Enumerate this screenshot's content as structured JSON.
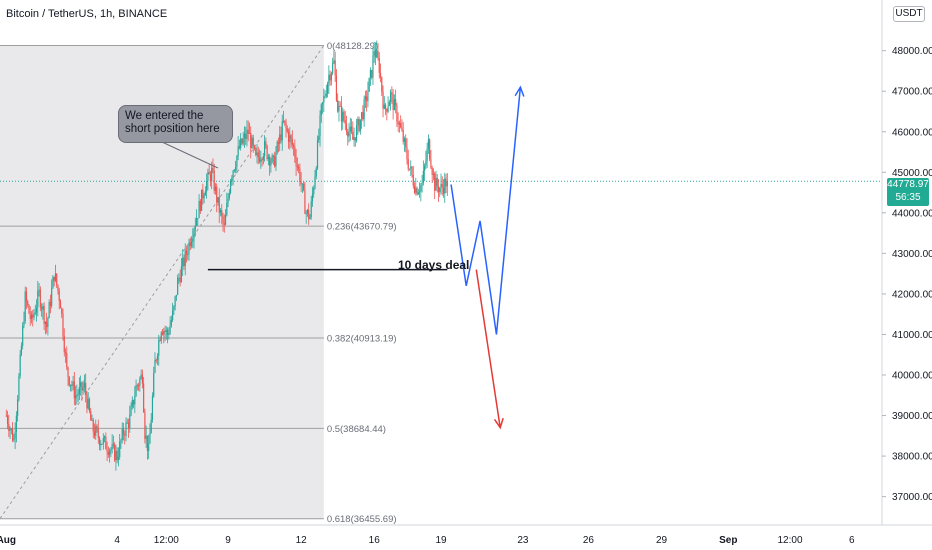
{
  "header": {
    "symbol_title": "Bitcoin / TetherUS, 1h, BINANCE",
    "currency": "USDT"
  },
  "last_price": {
    "value": 44778.97,
    "label": "44778.97",
    "countdown": "56:35",
    "color": "#22ab94"
  },
  "annotations": {
    "callout_text": "We entered the short position here",
    "deal_label": "10 days deal"
  },
  "colors": {
    "up_candle": "#26a69a",
    "down_candle": "#ef5350",
    "shade": "#e9e9ec",
    "fib_line": "#9e9e9e",
    "projection_blue": "#2962ff",
    "projection_red": "#e53935"
  },
  "chart_data": {
    "type": "candlestick",
    "title": "Bitcoin / TetherUS, 1h, BINANCE",
    "y_axis": {
      "ticks": [
        "48000.00",
        "47000.00",
        "46000.00",
        "45000.00",
        "44000.00",
        "43000.00",
        "42000.00",
        "41000.00",
        "40000.00",
        "39000.00",
        "38000.00",
        "37000.00"
      ],
      "tick_values": [
        48000,
        47000,
        46000,
        45000,
        44000,
        43000,
        42000,
        41000,
        40000,
        39000,
        38000,
        37000
      ],
      "range": [
        36300,
        49250
      ]
    },
    "x_axis": {
      "ticks": [
        "Aug",
        "4",
        "12:00",
        "9",
        "12",
        "16",
        "19",
        "23",
        "26",
        "29",
        "Sep",
        "12:00",
        "6"
      ],
      "tick_bars": [
        0,
        88,
        127,
        176,
        234,
        292,
        345,
        410,
        462,
        520,
        573,
        622,
        671
      ],
      "bar_range": [
        -5,
        695
      ]
    },
    "fibonacci": [
      {
        "level": "0",
        "price": 48128.29,
        "label": "0(48128.29)"
      },
      {
        "level": "0.236",
        "price": 43670.79,
        "label": "0.236(43670.79)"
      },
      {
        "level": "0.382",
        "price": 40913.19,
        "label": "0.382(40913.19)"
      },
      {
        "level": "0.5",
        "price": 38684.44,
        "label": "0.5(38684.44)"
      },
      {
        "level": "0.618",
        "price": 36455.69,
        "label": "0.618(36455.69)"
      }
    ],
    "price_anchors": [
      [
        0,
        39000
      ],
      [
        6,
        38400
      ],
      [
        10,
        39900
      ],
      [
        15,
        41900
      ],
      [
        20,
        41300
      ],
      [
        26,
        42000
      ],
      [
        32,
        41200
      ],
      [
        38,
        42500
      ],
      [
        43,
        41800
      ],
      [
        48,
        40100
      ],
      [
        55,
        39500
      ],
      [
        62,
        39700
      ],
      [
        68,
        38700
      ],
      [
        75,
        38400
      ],
      [
        82,
        38200
      ],
      [
        88,
        38000
      ],
      [
        93,
        38600
      ],
      [
        98,
        38900
      ],
      [
        103,
        39700
      ],
      [
        108,
        40000
      ],
      [
        110,
        38600
      ],
      [
        113,
        38100
      ],
      [
        118,
        40300
      ],
      [
        123,
        41200
      ],
      [
        128,
        41000
      ],
      [
        133,
        41600
      ],
      [
        136,
        42300
      ],
      [
        142,
        42900
      ],
      [
        150,
        43800
      ],
      [
        158,
        44700
      ],
      [
        163,
        45000
      ],
      [
        168,
        44200
      ],
      [
        173,
        43600
      ],
      [
        178,
        44900
      ],
      [
        185,
        45600
      ],
      [
        192,
        46000
      ],
      [
        198,
        45300
      ],
      [
        205,
        45600
      ],
      [
        212,
        45200
      ],
      [
        220,
        46200
      ],
      [
        228,
        45600
      ],
      [
        233,
        44900
      ],
      [
        238,
        44000
      ],
      [
        241,
        43900
      ],
      [
        245,
        45000
      ],
      [
        250,
        46500
      ],
      [
        256,
        47400
      ],
      [
        260,
        47700
      ],
      [
        263,
        46600
      ],
      [
        268,
        46300
      ],
      [
        275,
        45800
      ],
      [
        280,
        46200
      ],
      [
        285,
        46700
      ],
      [
        290,
        47500
      ],
      [
        292,
        48050
      ],
      [
        296,
        47600
      ],
      [
        300,
        46500
      ],
      [
        305,
        46900
      ],
      [
        310,
        46400
      ],
      [
        315,
        45800
      ],
      [
        320,
        45100
      ],
      [
        325,
        44600
      ],
      [
        330,
        44700
      ],
      [
        335,
        45700
      ],
      [
        340,
        44700
      ],
      [
        345,
        44600
      ],
      [
        350,
        44800
      ]
    ],
    "projection_blue": [
      [
        353,
        44700
      ],
      [
        365,
        42200
      ],
      [
        376,
        43800
      ],
      [
        389,
        41000
      ],
      [
        408,
        47100
      ]
    ],
    "projection_red": [
      [
        373,
        42600
      ],
      [
        392,
        38700
      ]
    ],
    "horizontal_marker": {
      "from_bar": 160,
      "to_bar": 350,
      "price": 42600
    },
    "shaded_region_bars": [
      -5,
      252
    ],
    "diagonal_from": [
      -5,
      36455.69
    ],
    "diagonal_to": [
      252,
      48128.29
    ],
    "last_price": 44778.97
  }
}
